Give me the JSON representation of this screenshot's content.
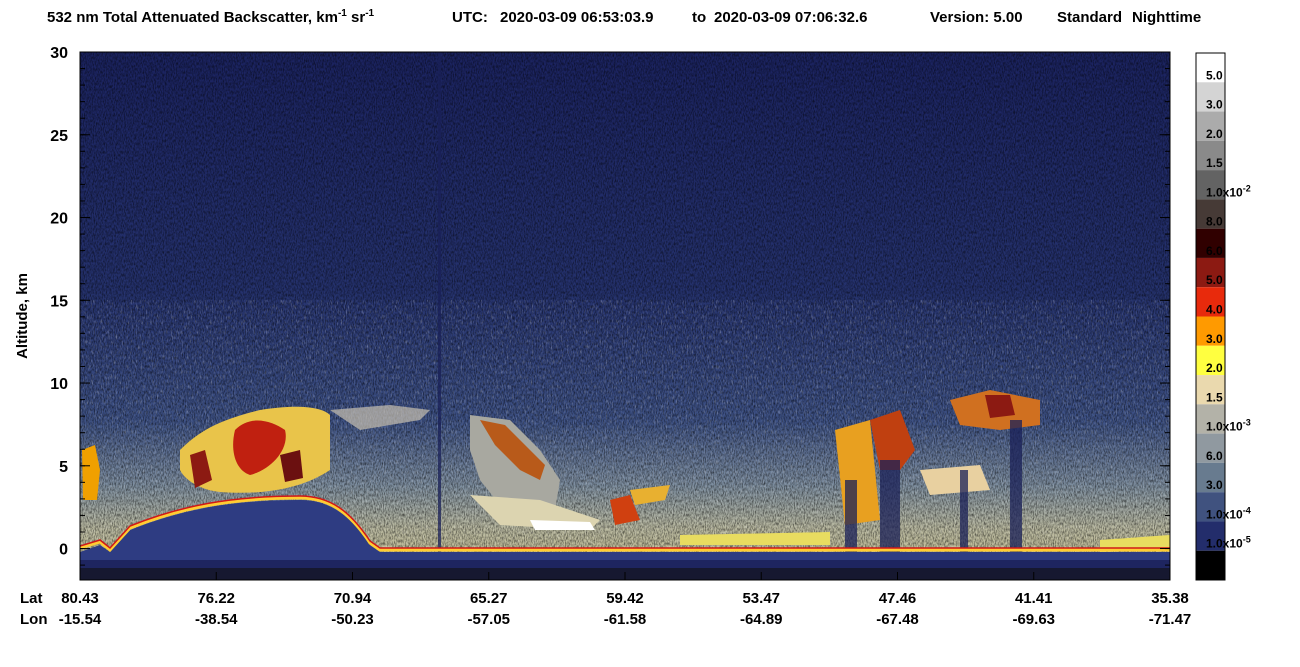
{
  "chart_data": {
    "type": "curtain",
    "title": {
      "text": "532 nm Total Attenuated Backscatter, km",
      "exp1": "-1",
      "unit2": " sr",
      "exp2": "-1"
    },
    "utc_label": "UTC:",
    "start": "2020-03-09 06:53:03.9",
    "to": "to",
    "end": "2020-03-09 07:06:32.6",
    "version": "Version: 5.00",
    "product": "Standard",
    "mode": "Nighttime",
    "y_label": "Altitude, km",
    "ylim": [
      -1.9,
      30
    ],
    "yticks": [
      0,
      5,
      10,
      15,
      20,
      25,
      30
    ],
    "lat_label": "Lat",
    "lon_label": "Lon",
    "lat": [
      "80.43",
      "76.22",
      "70.94",
      "65.27",
      "59.42",
      "53.47",
      "47.46",
      "41.41",
      "35.38"
    ],
    "lon": [
      "-15.54",
      "-38.54",
      "-50.23",
      "-57.05",
      "-61.58",
      "-64.89",
      "-67.48",
      "-69.63",
      "-71.47"
    ],
    "colorbar": {
      "colors": [
        "#ffffff",
        "#d4d4d4",
        "#ababab",
        "#8a8a8a",
        "#636363",
        "#463a36",
        "#300000",
        "#8c1a12",
        "#e82a0c",
        "#ff9a00",
        "#ffff40",
        "#ead9ae",
        "#b3b2a8",
        "#9099a0",
        "#687b8f",
        "#40527f",
        "#232d6b",
        "#000000"
      ],
      "labels": [
        "5.0",
        "3.0",
        "2.0",
        "1.5",
        {
          "base": "1.0x10",
          "exp": "-2"
        },
        "8.0",
        "6.0",
        "5.0",
        "4.0",
        "3.0",
        "2.0",
        "1.5",
        {
          "base": "1.0x10",
          "exp": "-3"
        },
        "6.0",
        "3.0",
        {
          "base": "1.0x10",
          "exp": "-4"
        },
        {
          "base": "1.0x10",
          "exp": "-5"
        }
      ]
    }
  }
}
